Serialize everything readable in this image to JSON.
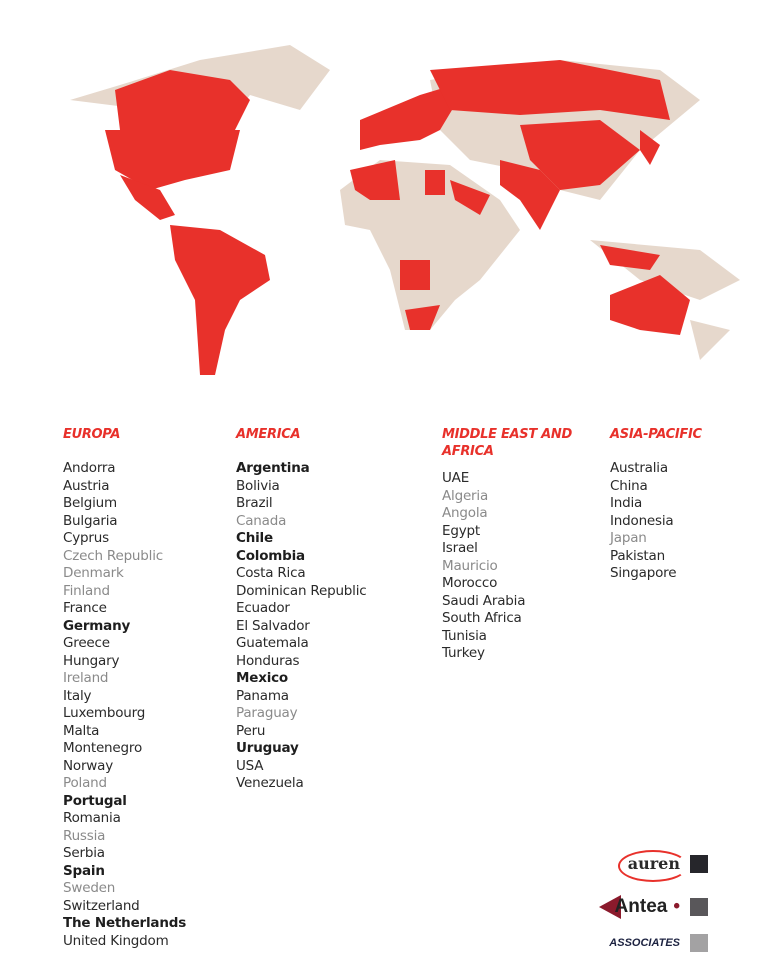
{
  "map": {
    "base_color": "#e6d8cc",
    "highlight_color": "#e8312b"
  },
  "columns": [
    {
      "heading": "EUROPA",
      "items": [
        {
          "name": "Andorra",
          "style": "n"
        },
        {
          "name": "Austria",
          "style": "n"
        },
        {
          "name": "Belgium",
          "style": "n"
        },
        {
          "name": "Bulgaria",
          "style": "n"
        },
        {
          "name": "Cyprus",
          "style": "n"
        },
        {
          "name": "Czech Republic",
          "style": "g"
        },
        {
          "name": "Denmark",
          "style": "g"
        },
        {
          "name": "Finland",
          "style": "g"
        },
        {
          "name": "France",
          "style": "n"
        },
        {
          "name": "Germany",
          "style": "b"
        },
        {
          "name": "Greece",
          "style": "n"
        },
        {
          "name": "Hungary",
          "style": "n"
        },
        {
          "name": "Ireland",
          "style": "g"
        },
        {
          "name": "Italy",
          "style": "n"
        },
        {
          "name": "Luxembourg",
          "style": "n"
        },
        {
          "name": "Malta",
          "style": "n"
        },
        {
          "name": "Montenegro",
          "style": "n"
        },
        {
          "name": "Norway",
          "style": "n"
        },
        {
          "name": "Poland",
          "style": "g"
        },
        {
          "name": "Portugal",
          "style": "b"
        },
        {
          "name": "Romania",
          "style": "n"
        },
        {
          "name": "Russia",
          "style": "g"
        },
        {
          "name": "Serbia",
          "style": "n"
        },
        {
          "name": "Spain",
          "style": "b"
        },
        {
          "name": "Sweden",
          "style": "g"
        },
        {
          "name": "Switzerland",
          "style": "n"
        },
        {
          "name": "The Netherlands",
          "style": "b"
        },
        {
          "name": "United Kingdom",
          "style": "n"
        }
      ]
    },
    {
      "heading": "AMERICA",
      "items": [
        {
          "name": "Argentina",
          "style": "b"
        },
        {
          "name": "Bolivia",
          "style": "n"
        },
        {
          "name": "Brazil",
          "style": "n"
        },
        {
          "name": "Canada",
          "style": "g"
        },
        {
          "name": "Chile",
          "style": "b"
        },
        {
          "name": "Colombia",
          "style": "b"
        },
        {
          "name": "Costa Rica",
          "style": "n"
        },
        {
          "name": "Dominican Republic",
          "style": "n"
        },
        {
          "name": "Ecuador",
          "style": "n"
        },
        {
          "name": "El Salvador",
          "style": "n"
        },
        {
          "name": "Guatemala",
          "style": "n"
        },
        {
          "name": "Honduras",
          "style": "n"
        },
        {
          "name": "Mexico",
          "style": "b"
        },
        {
          "name": "Panama",
          "style": "n"
        },
        {
          "name": "Paraguay",
          "style": "g"
        },
        {
          "name": "Peru",
          "style": "n"
        },
        {
          "name": "Uruguay",
          "style": "b"
        },
        {
          "name": "USA",
          "style": "n"
        },
        {
          "name": "Venezuela",
          "style": "n"
        }
      ]
    },
    {
      "heading": "MIDDLE EAST AND AFRICA",
      "items": [
        {
          "name": "UAE",
          "style": "n"
        },
        {
          "name": "Algeria",
          "style": "g"
        },
        {
          "name": "Angola",
          "style": "g"
        },
        {
          "name": "Egypt",
          "style": "n"
        },
        {
          "name": "Israel",
          "style": "n"
        },
        {
          "name": "Mauricio",
          "style": "g"
        },
        {
          "name": "Morocco",
          "style": "n"
        },
        {
          "name": "Saudi Arabia",
          "style": "n"
        },
        {
          "name": "South Africa",
          "style": "n"
        },
        {
          "name": "Tunisia",
          "style": "n"
        },
        {
          "name": "Turkey",
          "style": "n"
        }
      ]
    },
    {
      "heading": "ASIA-PACIFIC",
      "items": [
        {
          "name": "Australia",
          "style": "n"
        },
        {
          "name": "China",
          "style": "n"
        },
        {
          "name": "India",
          "style": "n"
        },
        {
          "name": "Indonesia",
          "style": "n"
        },
        {
          "name": "Japan",
          "style": "g"
        },
        {
          "name": "Pakistan",
          "style": "n"
        },
        {
          "name": "Singapore",
          "style": "n"
        }
      ]
    }
  ],
  "legend": [
    {
      "label": "auren",
      "color": "#26262b"
    },
    {
      "label": "Antea",
      "color": "#59575a"
    },
    {
      "label": "ASSOCIATES",
      "color": "#a3a2a3"
    }
  ]
}
